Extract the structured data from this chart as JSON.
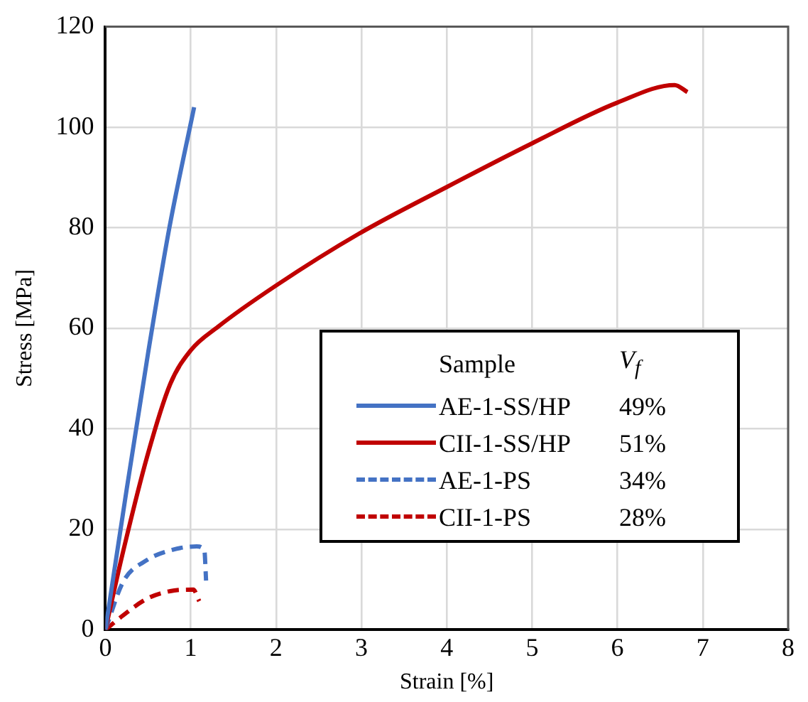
{
  "chart_data": {
    "type": "line",
    "xlabel": "Strain [%]",
    "ylabel": "Stress [MPa]",
    "xlim": [
      0,
      8
    ],
    "xticks": [
      0,
      1,
      2,
      3,
      4,
      5,
      6,
      7,
      8
    ],
    "ylim": [
      0,
      120
    ],
    "yticks": [
      0,
      20,
      40,
      60,
      80,
      100,
      120
    ],
    "grid": true,
    "legend": "right",
    "legend_title": "Sample",
    "marker": "none",
    "annotations": [
      "V$_{f}$",
      "49%",
      "51%",
      "34%",
      "28%"
    ],
    "series": [
      {
        "name": "AE-1-SS/HP",
        "color": "#4472c4",
        "line_style": "solid",
        "x": [
          0,
          0.25,
          0.5,
          0.75,
          1.04
        ],
        "values": [
          0,
          28,
          55,
          80,
          104
        ]
      },
      {
        "name": "CII-1-SS/HP",
        "color": "#c00000",
        "line_style": "solid",
        "x": [
          0,
          0.2,
          0.49,
          0.76,
          1.0,
          1.32,
          2.0,
          2.97,
          4.0,
          5.0,
          6.0,
          6.67,
          6.82
        ],
        "values": [
          0,
          15,
          34.5,
          48.9,
          55.6,
          60.3,
          68.5,
          78.8,
          88.1,
          96.8,
          104.9,
          108.4,
          107
        ]
      },
      {
        "name": "AE-1-PS",
        "color": "#4472c4",
        "line_style": "dashed",
        "x": [
          0,
          0.21,
          0.49,
          0.76,
          1.07,
          1.16,
          1.18
        ],
        "values": [
          0,
          9.6,
          13.9,
          15.8,
          16.6,
          15.8,
          9.8
        ]
      },
      {
        "name": "CII-1-PS",
        "color": "#c00000",
        "line_style": "dashed",
        "x": [
          0,
          0.21,
          0.49,
          0.76,
          1.03,
          1.1
        ],
        "values": [
          0,
          2.9,
          6.2,
          7.7,
          8.0,
          5.7
        ]
      }
    ]
  }
}
